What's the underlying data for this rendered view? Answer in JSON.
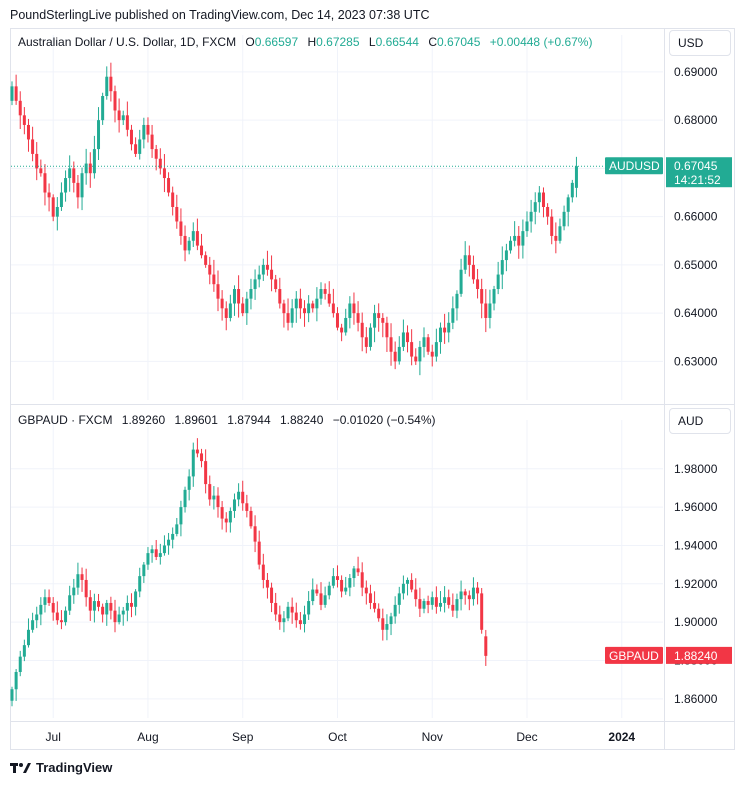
{
  "header": {
    "publish_line": "PoundSterlingLive published on TradingView.com, Dec 14, 2023 07:38 UTC"
  },
  "footer": {
    "brand": "TradingView"
  },
  "colors": {
    "up": "#22ab94",
    "down": "#f23645",
    "up_gbp": "#22ab94",
    "down_gbp": "#f23645"
  },
  "chart_data": [
    {
      "type": "candlestick",
      "symbol": "AUDUSD",
      "legend": {
        "name": "Australian Dollar / U.S. Dollar, 1D, FXCM",
        "o_label": "O",
        "o": "0.66597",
        "h_label": "H",
        "h": "0.67285",
        "l_label": "L",
        "l": "0.66544",
        "c_label": "C",
        "c": "0.67045",
        "change": "+0.00448 (+0.67%)"
      },
      "currency": "USD",
      "price_tag": {
        "symbol": "AUDUSD",
        "price": "0.67045",
        "countdown": "14:21:52"
      },
      "y_ticks": [
        "0.69000",
        "0.68000",
        "0.67000",
        "0.66000",
        "0.65000",
        "0.64000",
        "0.63000"
      ],
      "y_range": [
        0.622,
        0.6935
      ],
      "last_close": 0.67045,
      "closes": [
        0.687,
        0.684,
        0.681,
        0.679,
        0.676,
        0.673,
        0.67,
        0.669,
        0.665,
        0.664,
        0.66,
        0.662,
        0.665,
        0.668,
        0.67,
        0.667,
        0.664,
        0.669,
        0.671,
        0.669,
        0.674,
        0.68,
        0.685,
        0.689,
        0.686,
        0.682,
        0.68,
        0.681,
        0.678,
        0.675,
        0.673,
        0.676,
        0.679,
        0.677,
        0.674,
        0.672,
        0.67,
        0.668,
        0.665,
        0.662,
        0.659,
        0.656,
        0.653,
        0.655,
        0.657,
        0.654,
        0.652,
        0.65,
        0.648,
        0.646,
        0.643,
        0.641,
        0.639,
        0.642,
        0.645,
        0.642,
        0.64,
        0.643,
        0.645,
        0.647,
        0.648,
        0.65,
        0.649,
        0.647,
        0.645,
        0.642,
        0.64,
        0.638,
        0.641,
        0.643,
        0.641,
        0.64,
        0.642,
        0.641,
        0.643,
        0.645,
        0.644,
        0.642,
        0.64,
        0.637,
        0.636,
        0.639,
        0.642,
        0.64,
        0.638,
        0.635,
        0.633,
        0.637,
        0.64,
        0.639,
        0.638,
        0.635,
        0.632,
        0.63,
        0.633,
        0.636,
        0.634,
        0.631,
        0.63,
        0.633,
        0.635,
        0.632,
        0.631,
        0.634,
        0.637,
        0.636,
        0.638,
        0.641,
        0.644,
        0.649,
        0.652,
        0.65,
        0.647,
        0.645,
        0.642,
        0.639,
        0.642,
        0.645,
        0.648,
        0.651,
        0.653,
        0.655,
        0.656,
        0.654,
        0.657,
        0.659,
        0.661,
        0.663,
        0.665,
        0.662,
        0.66,
        0.656,
        0.655,
        0.658,
        0.661,
        0.664,
        0.667,
        0.67045
      ],
      "x_ticks": [
        "Jul",
        "Aug",
        "Sep",
        "Oct",
        "Nov",
        "Dec",
        "2024"
      ],
      "x_tick_bars": [
        10,
        33,
        56,
        79,
        102,
        125,
        148
      ]
    },
    {
      "type": "candlestick",
      "symbol": "GBPAUD",
      "legend": {
        "name": "GBPAUD · FXCM",
        "o": "1.89260",
        "h": "1.89601",
        "l": "1.87944",
        "c": "1.88240",
        "change": "−0.01020 (−0.54%)"
      },
      "currency": "AUD",
      "price_tag": {
        "symbol": "GBPAUD",
        "price": "1.88240"
      },
      "y_ticks": [
        "1.98000",
        "1.96000",
        "1.94000",
        "1.92000",
        "1.90000",
        "1.88000",
        "1.86000"
      ],
      "y_range": [
        1.85,
        1.995
      ],
      "last_close": 1.8824,
      "closes": [
        1.865,
        1.874,
        1.882,
        1.888,
        1.896,
        1.901,
        1.904,
        1.909,
        1.913,
        1.91,
        1.905,
        1.901,
        1.9,
        1.906,
        1.914,
        1.918,
        1.925,
        1.922,
        1.913,
        1.906,
        1.911,
        1.908,
        1.904,
        1.91,
        1.906,
        1.9,
        1.904,
        1.906,
        1.91,
        1.908,
        1.916,
        1.924,
        1.93,
        1.936,
        1.938,
        1.934,
        1.936,
        1.94,
        1.943,
        1.946,
        1.951,
        1.96,
        1.969,
        1.976,
        1.99,
        1.988,
        1.984,
        1.972,
        1.964,
        1.966,
        1.96,
        1.954,
        1.952,
        1.958,
        1.964,
        1.968,
        1.962,
        1.958,
        1.95,
        1.942,
        1.93,
        1.922,
        1.918,
        1.91,
        1.904,
        1.9,
        1.902,
        1.908,
        1.905,
        1.901,
        1.899,
        1.904,
        1.911,
        1.917,
        1.915,
        1.909,
        1.914,
        1.919,
        1.924,
        1.922,
        1.916,
        1.918,
        1.923,
        1.928,
        1.926,
        1.918,
        1.915,
        1.91,
        1.907,
        1.902,
        1.896,
        1.899,
        1.903,
        1.909,
        1.915,
        1.92,
        1.922,
        1.917,
        1.912,
        1.907,
        1.911,
        1.909,
        1.913,
        1.908,
        1.91,
        1.913,
        1.909,
        1.906,
        1.912,
        1.916,
        1.914,
        1.912,
        1.918,
        1.915,
        1.896,
        1.8824
      ]
    }
  ]
}
